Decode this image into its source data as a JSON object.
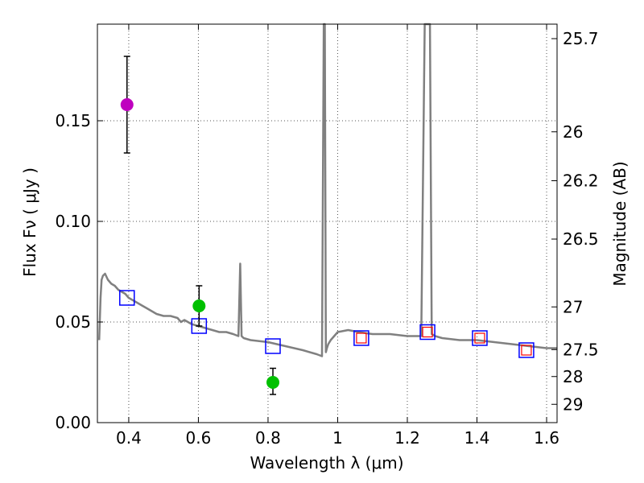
{
  "chart_data": {
    "type": "scatter",
    "xlabel": "Wavelength  λ (μm)",
    "ylabel": "Flux  Fν  ( μJy )",
    "y2label": "Magnitude (AB)",
    "xlim": [
      0.31,
      1.63
    ],
    "ylim": [
      0.0,
      0.198
    ],
    "grid": true,
    "x_ticks": [
      0.4,
      0.6,
      0.8,
      1.0,
      1.2,
      1.4,
      1.6
    ],
    "x_tick_labels": [
      "0.4",
      "0.6",
      "0.8",
      "1",
      "1.2",
      "1.4",
      "1.6"
    ],
    "y_ticks": [
      0.0,
      0.05,
      0.1,
      0.15
    ],
    "y_tick_labels": [
      "0.00",
      "0.05",
      "0.10",
      "0.15"
    ],
    "mag_ticks": [
      {
        "label": "25.7",
        "flux": 0.1908
      },
      {
        "label": "26",
        "flux": 0.1445
      },
      {
        "label": "26.2",
        "flux": 0.1202
      },
      {
        "label": "26.5",
        "flux": 0.0912
      },
      {
        "label": "27",
        "flux": 0.0575
      },
      {
        "label": "27.5",
        "flux": 0.0363
      },
      {
        "label": "28",
        "flux": 0.0229
      },
      {
        "label": "29",
        "flux": 0.0091
      }
    ],
    "model_sed": {
      "color": "#808080",
      "x": [
        0.315,
        0.319,
        0.322,
        0.326,
        0.332,
        0.34,
        0.35,
        0.36,
        0.37,
        0.38,
        0.39,
        0.4,
        0.41,
        0.42,
        0.43,
        0.44,
        0.45,
        0.46,
        0.47,
        0.48,
        0.5,
        0.52,
        0.54,
        0.55,
        0.56,
        0.58,
        0.6,
        0.62,
        0.64,
        0.66,
        0.68,
        0.7,
        0.715,
        0.72,
        0.724,
        0.73,
        0.75,
        0.8,
        0.85,
        0.9,
        0.94,
        0.955,
        0.96,
        0.963,
        0.966,
        0.969,
        0.973,
        0.98,
        1.0,
        1.03,
        1.06,
        1.1,
        1.15,
        1.2,
        1.24,
        1.25,
        1.26,
        1.265,
        1.27,
        1.28,
        1.3,
        1.35,
        1.4,
        1.45,
        1.5,
        1.55,
        1.6,
        1.63
      ],
      "y": [
        0.041,
        0.062,
        0.071,
        0.073,
        0.074,
        0.071,
        0.069,
        0.068,
        0.066,
        0.065,
        0.064,
        0.062,
        0.061,
        0.06,
        0.059,
        0.058,
        0.057,
        0.056,
        0.055,
        0.054,
        0.053,
        0.053,
        0.052,
        0.05,
        0.051,
        0.049,
        0.048,
        0.047,
        0.046,
        0.045,
        0.045,
        0.044,
        0.043,
        0.079,
        0.043,
        0.042,
        0.041,
        0.04,
        0.038,
        0.036,
        0.034,
        0.033,
        0.198,
        0.198,
        0.035,
        0.037,
        0.039,
        0.041,
        0.045,
        0.046,
        0.045,
        0.044,
        0.044,
        0.043,
        0.043,
        0.198,
        0.198,
        0.198,
        0.044,
        0.043,
        0.042,
        0.041,
        0.041,
        0.04,
        0.039,
        0.038,
        0.037,
        0.037
      ]
    },
    "model_photometry": {
      "marker": "open-square",
      "color": "#0000ff",
      "points": [
        {
          "x": 0.395,
          "y": 0.062
        },
        {
          "x": 0.602,
          "y": 0.048
        },
        {
          "x": 0.814,
          "y": 0.038
        },
        {
          "x": 1.068,
          "y": 0.042
        },
        {
          "x": 1.258,
          "y": 0.045
        },
        {
          "x": 1.408,
          "y": 0.042
        },
        {
          "x": 1.542,
          "y": 0.036
        }
      ]
    },
    "observed_photometry": [
      {
        "x": 0.395,
        "y": 0.158,
        "yerr": [
          0.134,
          0.182
        ],
        "color": "#bf00bf",
        "marker": "filled-circle"
      },
      {
        "x": 0.602,
        "y": 0.058,
        "yerr": [
          0.048,
          0.068
        ],
        "color": "#00c000",
        "marker": "filled-circle"
      },
      {
        "x": 0.814,
        "y": 0.02,
        "yerr": [
          0.014,
          0.027
        ],
        "color": "#00c000",
        "marker": "filled-circle"
      },
      {
        "x": 1.068,
        "y": 0.042,
        "color": "#ff0000",
        "marker": "open-square-small"
      },
      {
        "x": 1.258,
        "y": 0.045,
        "color": "#ff0000",
        "marker": "open-square-small"
      },
      {
        "x": 1.408,
        "y": 0.042,
        "color": "#ff0000",
        "marker": "open-square-small"
      },
      {
        "x": 1.542,
        "y": 0.036,
        "color": "#ff0000",
        "marker": "open-square-small"
      }
    ]
  }
}
